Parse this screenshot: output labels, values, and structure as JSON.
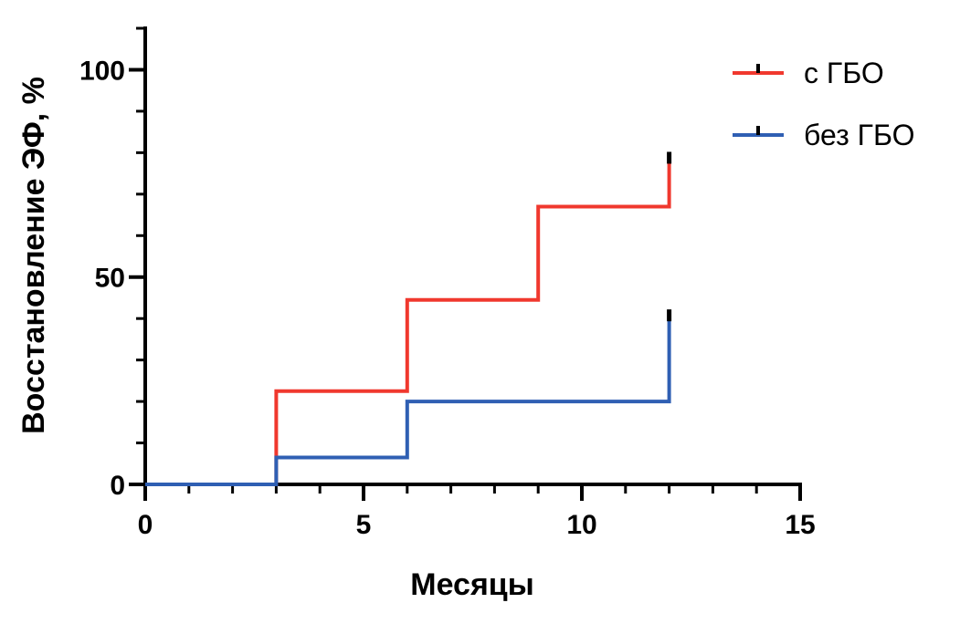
{
  "chart_data": {
    "type": "line",
    "step": true,
    "xlabel": "Месяцы",
    "ylabel": "Восстановление ЭФ, %",
    "xlim": [
      0,
      15
    ],
    "ylim": [
      0,
      110
    ],
    "x_ticks": [
      0,
      5,
      10,
      15
    ],
    "x_minor_tick_step": 1,
    "y_ticks": [
      0,
      50,
      100
    ],
    "y_minor_tick_step": 10,
    "grid": false,
    "legend_position": "top-right",
    "censor_mark_color": "#000000",
    "series": [
      {
        "name": "с ГБО",
        "color": "#f0382e",
        "x": [
          0,
          3,
          6,
          9,
          12
        ],
        "y": [
          0,
          22.5,
          44.5,
          67,
          78
        ],
        "censored": [
          {
            "x": 12,
            "y": 78
          }
        ]
      },
      {
        "name": "без ГБО",
        "color": "#2f5fb3",
        "x": [
          0,
          3,
          6,
          12
        ],
        "y": [
          0,
          6.5,
          20,
          40
        ],
        "censored": [
          {
            "x": 12,
            "y": 40
          }
        ]
      }
    ]
  }
}
